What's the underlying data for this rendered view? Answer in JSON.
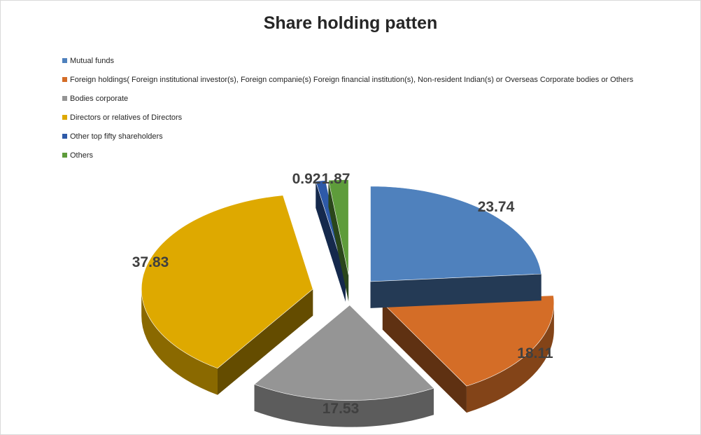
{
  "chart_data": {
    "type": "pie",
    "title": "Share holding patten",
    "legend_position": "top-left",
    "exploded": true,
    "three_d": true,
    "slices": [
      {
        "label": "Mutual funds",
        "value": 23.74,
        "value_label": "23.74",
        "color": "#4f81bd"
      },
      {
        "label": "Foreign holdings( Foreign institutional investor(s), Foreign companie(s) Foreign financial institution(s), Non-resident Indian(s) or Overseas Corporate bodies or Others",
        "value": 18.11,
        "value_label": "18.11",
        "color": "#d46d27"
      },
      {
        "label": "Bodies corporate",
        "value": 17.53,
        "value_label": "17.53",
        "color": "#959595"
      },
      {
        "label": "Directors or relatives of Directors",
        "value": 37.83,
        "value_label": "37.83",
        "color": "#dea900"
      },
      {
        "label": "Other top fifty shareholders",
        "value": 0.92,
        "value_label": "0.92",
        "color": "#2e5aa8"
      },
      {
        "label": "Others",
        "value": 1.87,
        "value_label": "1.87",
        "color": "#5e9c3b"
      }
    ]
  }
}
